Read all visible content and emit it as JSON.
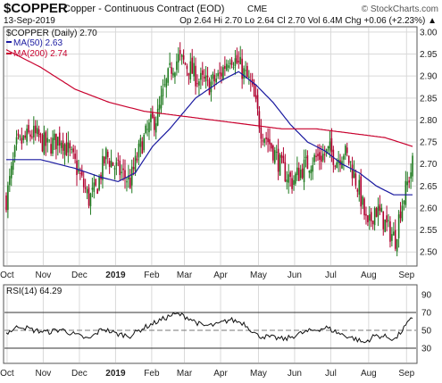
{
  "header": {
    "symbol": "$COPPER",
    "description": "Copper - Continuous Contract (EOD)",
    "exchange": "CME",
    "watermark": "© StockCharts.com",
    "date": "13-Sep-2019",
    "quote": "Op 2.64 Hi 2.70 Lo 2.64 Cl 2.70 Vol 6.4M Chg +0.06 (+2.23%) ▲"
  },
  "legend": {
    "price": "$COPPER (Daily) 2.70",
    "ma50": "MA(50) 2.63",
    "ma200": "MA(200) 2.74",
    "rsi": "RSI(14) 64.29"
  },
  "colors": {
    "up": "#1f7a1f",
    "down": "#b0002f",
    "ma50": "#1a1aa0",
    "ma200": "#c8002d",
    "grid": "#d9d9d9",
    "frame": "#555555",
    "arrow_up": "#1a7a1a"
  },
  "chart_data": [
    {
      "type": "candlestick",
      "title": "$COPPER (Daily) 2.70",
      "x_tick_labels": [
        "Oct",
        "Nov",
        "Dec",
        "2019",
        "Feb",
        "Mar",
        "Apr",
        "May",
        "Jun",
        "Jul",
        "Aug",
        "Sep"
      ],
      "x_tick_positions": [
        0.5,
        21.5,
        42.5,
        63.5,
        84.5,
        103.5,
        124.5,
        146.5,
        167.5,
        188.5,
        210.5,
        232.5
      ],
      "y_ticks": [
        2.5,
        2.55,
        2.6,
        2.65,
        2.7,
        2.75,
        2.8,
        2.85,
        2.9,
        2.95,
        3.0
      ],
      "ylim": [
        2.47,
        3.01
      ],
      "close_keypoints": [
        [
          0,
          2.62
        ],
        [
          6,
          2.74
        ],
        [
          15,
          2.77
        ],
        [
          24,
          2.74
        ],
        [
          32,
          2.76
        ],
        [
          40,
          2.7
        ],
        [
          48,
          2.62
        ],
        [
          52,
          2.64
        ],
        [
          58,
          2.72
        ],
        [
          64,
          2.69
        ],
        [
          72,
          2.66
        ],
        [
          78,
          2.74
        ],
        [
          84,
          2.79
        ],
        [
          88,
          2.81
        ],
        [
          92,
          2.87
        ],
        [
          96,
          2.92
        ],
        [
          100,
          2.94
        ],
        [
          106,
          2.92
        ],
        [
          112,
          2.89
        ],
        [
          118,
          2.88
        ],
        [
          124,
          2.9
        ],
        [
          130,
          2.95
        ],
        [
          136,
          2.92
        ],
        [
          142,
          2.88
        ],
        [
          148,
          2.78
        ],
        [
          154,
          2.74
        ],
        [
          160,
          2.69
        ],
        [
          166,
          2.66
        ],
        [
          172,
          2.69
        ],
        [
          178,
          2.71
        ],
        [
          184,
          2.72
        ],
        [
          188,
          2.73
        ],
        [
          192,
          2.71
        ],
        [
          196,
          2.73
        ],
        [
          200,
          2.7
        ],
        [
          205,
          2.64
        ],
        [
          210,
          2.55
        ],
        [
          214,
          2.6
        ],
        [
          218,
          2.58
        ],
        [
          222,
          2.55
        ],
        [
          226,
          2.53
        ],
        [
          229,
          2.6
        ],
        [
          232,
          2.64
        ],
        [
          236,
          2.7
        ]
      ],
      "series": [
        {
          "name": "MA(50) 2.63",
          "keypoints": [
            [
              0,
              2.71
            ],
            [
              20,
              2.71
            ],
            [
              40,
              2.69
            ],
            [
              55,
              2.67
            ],
            [
              65,
              2.66
            ],
            [
              75,
              2.68
            ],
            [
              85,
              2.74
            ],
            [
              95,
              2.78
            ],
            [
              110,
              2.85
            ],
            [
              125,
              2.89
            ],
            [
              135,
              2.91
            ],
            [
              145,
              2.88
            ],
            [
              155,
              2.84
            ],
            [
              165,
              2.79
            ],
            [
              175,
              2.75
            ],
            [
              185,
              2.73
            ],
            [
              195,
              2.7
            ],
            [
              205,
              2.68
            ],
            [
              215,
              2.65
            ],
            [
              225,
              2.63
            ],
            [
              236,
              2.63
            ]
          ]
        },
        {
          "name": "MA(200) 2.74",
          "keypoints": [
            [
              0,
              2.96
            ],
            [
              20,
              2.92
            ],
            [
              40,
              2.87
            ],
            [
              60,
              2.84
            ],
            [
              80,
              2.82
            ],
            [
              100,
              2.81
            ],
            [
              120,
              2.8
            ],
            [
              140,
              2.79
            ],
            [
              160,
              2.78
            ],
            [
              180,
              2.78
            ],
            [
              200,
              2.77
            ],
            [
              220,
              2.76
            ],
            [
              236,
              2.74
            ]
          ]
        }
      ]
    },
    {
      "type": "line",
      "title": "RSI(14) 64.29",
      "y_ticks": [
        30,
        50,
        70,
        90
      ],
      "ylim": [
        14,
        100
      ],
      "reference_lines": [
        30,
        50,
        70
      ],
      "series": [
        {
          "name": "RSI(14) 64.29",
          "keypoints": [
            [
              0,
              47
            ],
            [
              8,
              55
            ],
            [
              16,
              50
            ],
            [
              24,
              48
            ],
            [
              32,
              51
            ],
            [
              40,
              45
            ],
            [
              48,
              40
            ],
            [
              56,
              52
            ],
            [
              64,
              46
            ],
            [
              72,
              44
            ],
            [
              80,
              53
            ],
            [
              88,
              60
            ],
            [
              96,
              67
            ],
            [
              100,
              68
            ],
            [
              106,
              64
            ],
            [
              114,
              55
            ],
            [
              122,
              56
            ],
            [
              130,
              62
            ],
            [
              138,
              58
            ],
            [
              146,
              44
            ],
            [
              154,
              42
            ],
            [
              162,
              40
            ],
            [
              170,
              46
            ],
            [
              178,
              50
            ],
            [
              186,
              53
            ],
            [
              194,
              46
            ],
            [
              202,
              41
            ],
            [
              208,
              36
            ],
            [
              214,
              44
            ],
            [
              220,
              43
            ],
            [
              226,
              40
            ],
            [
              232,
              55
            ],
            [
              236,
              64
            ]
          ]
        }
      ]
    }
  ]
}
